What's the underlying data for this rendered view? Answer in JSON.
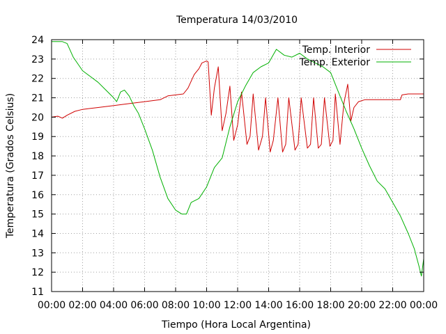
{
  "chart_data": {
    "type": "line",
    "title": "Temperatura 14/03/2010",
    "xlabel": "Tiempo (Hora Local Argentina)",
    "ylabel": "Temperatura (Grados Celsius)",
    "xlim": [
      0,
      24
    ],
    "ylim": [
      11,
      24
    ],
    "grid": true,
    "legend_position": "top-right",
    "x_ticks": [
      {
        "value": 0,
        "label": "00:00"
      },
      {
        "value": 2,
        "label": "02:00"
      },
      {
        "value": 4,
        "label": "04:00"
      },
      {
        "value": 6,
        "label": "06:00"
      },
      {
        "value": 8,
        "label": "08:00"
      },
      {
        "value": 10,
        "label": "10:00"
      },
      {
        "value": 12,
        "label": "12:00"
      },
      {
        "value": 14,
        "label": "14:00"
      },
      {
        "value": 16,
        "label": "16:00"
      },
      {
        "value": 18,
        "label": "18:00"
      },
      {
        "value": 20,
        "label": "20:00"
      },
      {
        "value": 22,
        "label": "22:00"
      },
      {
        "value": 24,
        "label": "00:00"
      }
    ],
    "y_ticks": [
      11,
      12,
      13,
      14,
      15,
      16,
      17,
      18,
      19,
      20,
      21,
      22,
      23,
      24
    ],
    "series": [
      {
        "name": "Temp. Interior",
        "color": "#d00000",
        "points": [
          [
            0.0,
            20.0
          ],
          [
            0.4,
            20.05
          ],
          [
            0.7,
            19.95
          ],
          [
            1.0,
            20.1
          ],
          [
            1.5,
            20.3
          ],
          [
            2.0,
            20.4
          ],
          [
            3.0,
            20.5
          ],
          [
            4.0,
            20.6
          ],
          [
            5.0,
            20.7
          ],
          [
            6.0,
            20.8
          ],
          [
            7.0,
            20.9
          ],
          [
            7.5,
            21.1
          ],
          [
            8.0,
            21.15
          ],
          [
            8.5,
            21.2
          ],
          [
            8.8,
            21.5
          ],
          [
            9.2,
            22.2
          ],
          [
            9.5,
            22.5
          ],
          [
            9.7,
            22.8
          ],
          [
            10.0,
            22.9
          ],
          [
            10.1,
            22.85
          ],
          [
            10.3,
            20.1
          ],
          [
            10.5,
            21.5
          ],
          [
            10.75,
            22.6
          ],
          [
            11.0,
            19.3
          ],
          [
            11.25,
            20.2
          ],
          [
            11.5,
            21.6
          ],
          [
            11.75,
            18.8
          ],
          [
            12.0,
            19.6
          ],
          [
            12.25,
            21.3
          ],
          [
            12.6,
            18.6
          ],
          [
            12.8,
            19.0
          ],
          [
            13.0,
            21.2
          ],
          [
            13.35,
            18.3
          ],
          [
            13.6,
            19.0
          ],
          [
            13.8,
            21.0
          ],
          [
            14.1,
            18.2
          ],
          [
            14.3,
            18.8
          ],
          [
            14.6,
            21.0
          ],
          [
            14.9,
            18.2
          ],
          [
            15.1,
            18.6
          ],
          [
            15.3,
            21.0
          ],
          [
            15.7,
            18.3
          ],
          [
            15.9,
            18.6
          ],
          [
            16.1,
            21.0
          ],
          [
            16.5,
            18.4
          ],
          [
            16.7,
            18.6
          ],
          [
            16.9,
            21.0
          ],
          [
            17.2,
            18.4
          ],
          [
            17.4,
            18.6
          ],
          [
            17.6,
            21.0
          ],
          [
            17.95,
            18.5
          ],
          [
            18.15,
            18.8
          ],
          [
            18.3,
            21.2
          ],
          [
            18.6,
            18.6
          ],
          [
            18.85,
            20.7
          ],
          [
            19.1,
            21.7
          ],
          [
            19.3,
            19.8
          ],
          [
            19.5,
            20.5
          ],
          [
            19.8,
            20.8
          ],
          [
            20.2,
            20.9
          ],
          [
            21.0,
            20.9
          ],
          [
            22.5,
            20.9
          ],
          [
            22.6,
            21.15
          ],
          [
            23.0,
            21.2
          ],
          [
            24.0,
            21.2
          ]
        ]
      },
      {
        "name": "Temp. Exterior",
        "color": "#00b000",
        "points": [
          [
            0.0,
            23.9
          ],
          [
            0.7,
            23.9
          ],
          [
            1.0,
            23.8
          ],
          [
            1.4,
            23.1
          ],
          [
            2.0,
            22.4
          ],
          [
            2.5,
            22.1
          ],
          [
            3.0,
            21.8
          ],
          [
            3.5,
            21.4
          ],
          [
            4.0,
            21.0
          ],
          [
            4.2,
            20.8
          ],
          [
            4.45,
            21.3
          ],
          [
            4.7,
            21.4
          ],
          [
            5.0,
            21.1
          ],
          [
            5.3,
            20.6
          ],
          [
            5.6,
            20.2
          ],
          [
            6.0,
            19.4
          ],
          [
            6.5,
            18.3
          ],
          [
            7.0,
            16.9
          ],
          [
            7.5,
            15.8
          ],
          [
            8.0,
            15.2
          ],
          [
            8.4,
            15.0
          ],
          [
            8.7,
            15.0
          ],
          [
            9.0,
            15.6
          ],
          [
            9.5,
            15.8
          ],
          [
            10.0,
            16.4
          ],
          [
            10.5,
            17.4
          ],
          [
            11.0,
            17.9
          ],
          [
            11.5,
            19.5
          ],
          [
            12.0,
            20.8
          ],
          [
            12.5,
            21.6
          ],
          [
            13.0,
            22.3
          ],
          [
            13.5,
            22.6
          ],
          [
            14.0,
            22.8
          ],
          [
            14.5,
            23.5
          ],
          [
            15.0,
            23.2
          ],
          [
            15.5,
            23.1
          ],
          [
            16.0,
            23.3
          ],
          [
            16.5,
            23.0
          ],
          [
            17.0,
            22.8
          ],
          [
            17.5,
            22.6
          ],
          [
            18.0,
            22.3
          ],
          [
            18.5,
            21.3
          ],
          [
            19.0,
            20.3
          ],
          [
            19.5,
            19.4
          ],
          [
            20.0,
            18.4
          ],
          [
            20.5,
            17.5
          ],
          [
            21.0,
            16.7
          ],
          [
            21.5,
            16.3
          ],
          [
            22.0,
            15.6
          ],
          [
            22.5,
            14.9
          ],
          [
            23.0,
            14.0
          ],
          [
            23.4,
            13.2
          ],
          [
            23.7,
            12.3
          ],
          [
            23.85,
            11.8
          ],
          [
            24.0,
            12.7
          ]
        ]
      }
    ]
  }
}
